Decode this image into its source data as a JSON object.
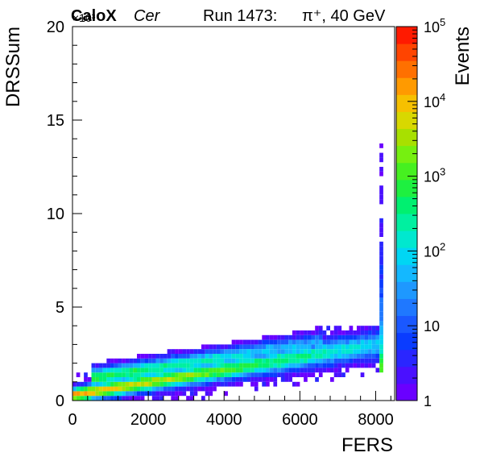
{
  "header": {
    "experiment": "CaloX",
    "channel": "Cer",
    "run": "Run 1473:",
    "beam": "π⁺, 40 GeV"
  },
  "chart_data": {
    "type": "heatmap",
    "xlabel": "FERS",
    "ylabel": "DRSSum",
    "zlabel": "Events",
    "xlim": [
      0,
      8500
    ],
    "ylim": [
      0,
      20000
    ],
    "y_multiplier": "×10³",
    "x_ticks": [
      "0",
      "2000",
      "4000",
      "6000",
      "8000"
    ],
    "y_ticks": [
      "0",
      "5",
      "10",
      "15",
      "20"
    ],
    "z_log": true,
    "zlim": [
      1,
      100000
    ],
    "z_ticks": [
      {
        "base": "1",
        "exp": ""
      },
      {
        "base": "10",
        "exp": ""
      },
      {
        "base": "10",
        "exp": "2"
      },
      {
        "base": "10",
        "exp": "3"
      },
      {
        "base": "10",
        "exp": "4"
      },
      {
        "base": "10",
        "exp": "5"
      }
    ],
    "palette": [
      "#6a00ff",
      "#4a10ff",
      "#2a26ff",
      "#0a3cff",
      "#1a58ff",
      "#1f78ff",
      "#1e98ff",
      "#14b8ff",
      "#00d6f4",
      "#00e8cf",
      "#00f0a0",
      "#00f070",
      "#1ef040",
      "#46f020",
      "#76f010",
      "#a8e000",
      "#d8d800",
      "#f6c000",
      "#ff9a00",
      "#ff7000",
      "#ff4400",
      "#ff1a00"
    ],
    "bands": [
      {
        "name": "main correlation band",
        "x_from": 0,
        "x_to": 8000,
        "y_center_start": 300,
        "y_center_end": 3000,
        "peak_log_events": 4.2
      },
      {
        "name": "upper branch",
        "x_from": 500,
        "x_to": 6500,
        "y_center_start": 700,
        "y_center_end": 2600,
        "peak_log_events": 3.0
      },
      {
        "name": "saturation column",
        "x_value": 8150,
        "y_from": 1500,
        "y_to": 14000,
        "peak_log_events": 3.0
      }
    ]
  }
}
